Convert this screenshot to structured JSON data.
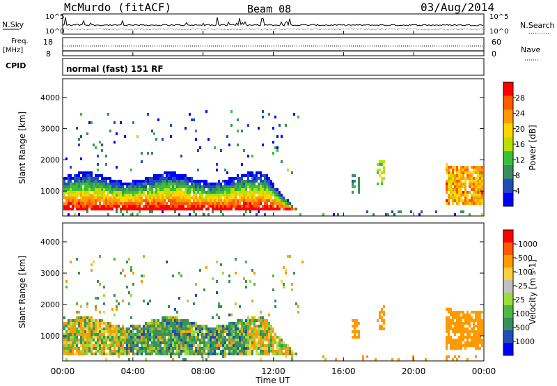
{
  "header": {
    "station": "McMurdo (fitACF)",
    "beam": "Beam 08",
    "date": "03/Aug/2014"
  },
  "noise_panel": {
    "left_label": "N.Sky",
    "right_label": "N.Search",
    "left_ticks": [
      "10^5",
      "10^0"
    ],
    "right_ticks": [
      "10^5",
      "10^0"
    ]
  },
  "freq_panel": {
    "left_label_1": "Freq.",
    "left_label_2": "[MHz]",
    "right_label": "Nave",
    "left_ticks": [
      "18",
      "8"
    ],
    "right_ticks": [
      "60",
      "0"
    ]
  },
  "cpid_panel": {
    "left_label": "CPID",
    "program": "normal (fast) 151 RF"
  },
  "colors": {
    "power_scale": [
      "#0000ff",
      "#1f4fb4",
      "#3a8f5a",
      "#35c23a",
      "#b8e000",
      "#ffd600",
      "#ff9a00",
      "#ff5a00",
      "#ff0000"
    ],
    "velocity_scale": [
      "#ff0000",
      "#ff5a00",
      "#ff9a00",
      "#ffcf40",
      "#c0c0c0",
      "#9bdc3c",
      "#4cb848",
      "#3a8f5a",
      "#1f4fb4",
      "#0000ff"
    ]
  },
  "chart_data": [
    {
      "type": "heatmap",
      "name": "power",
      "ylabel": "Slant Range [km]",
      "yticks": [
        "1000",
        "2000",
        "3000",
        "4000"
      ],
      "ylim": [
        200,
        4600
      ],
      "xlim_hours": [
        0,
        24
      ],
      "colorbar_label": "Power [dB]",
      "colorbar_ticks": [
        "4",
        "8",
        "12",
        "16",
        "20",
        "24",
        "28"
      ],
      "colorbar_range": [
        0,
        32
      ]
    },
    {
      "type": "heatmap",
      "name": "velocity",
      "ylabel": "Slant Range [km]",
      "yticks": [
        "1000",
        "2000",
        "3000",
        "4000"
      ],
      "ylim": [
        200,
        4600
      ],
      "xlim_hours": [
        0,
        24
      ],
      "colorbar_label": "Velocity [m s-1]",
      "colorbar_ticks": [
        "1000",
        "500",
        "100",
        "25",
        "-25",
        "-100",
        "-500",
        "-1000"
      ]
    }
  ],
  "xaxis": {
    "ticks": [
      "00:00",
      "04:00",
      "08:00",
      "12:00",
      "16:00",
      "20:00",
      "00:00"
    ],
    "label": "Time UT"
  }
}
